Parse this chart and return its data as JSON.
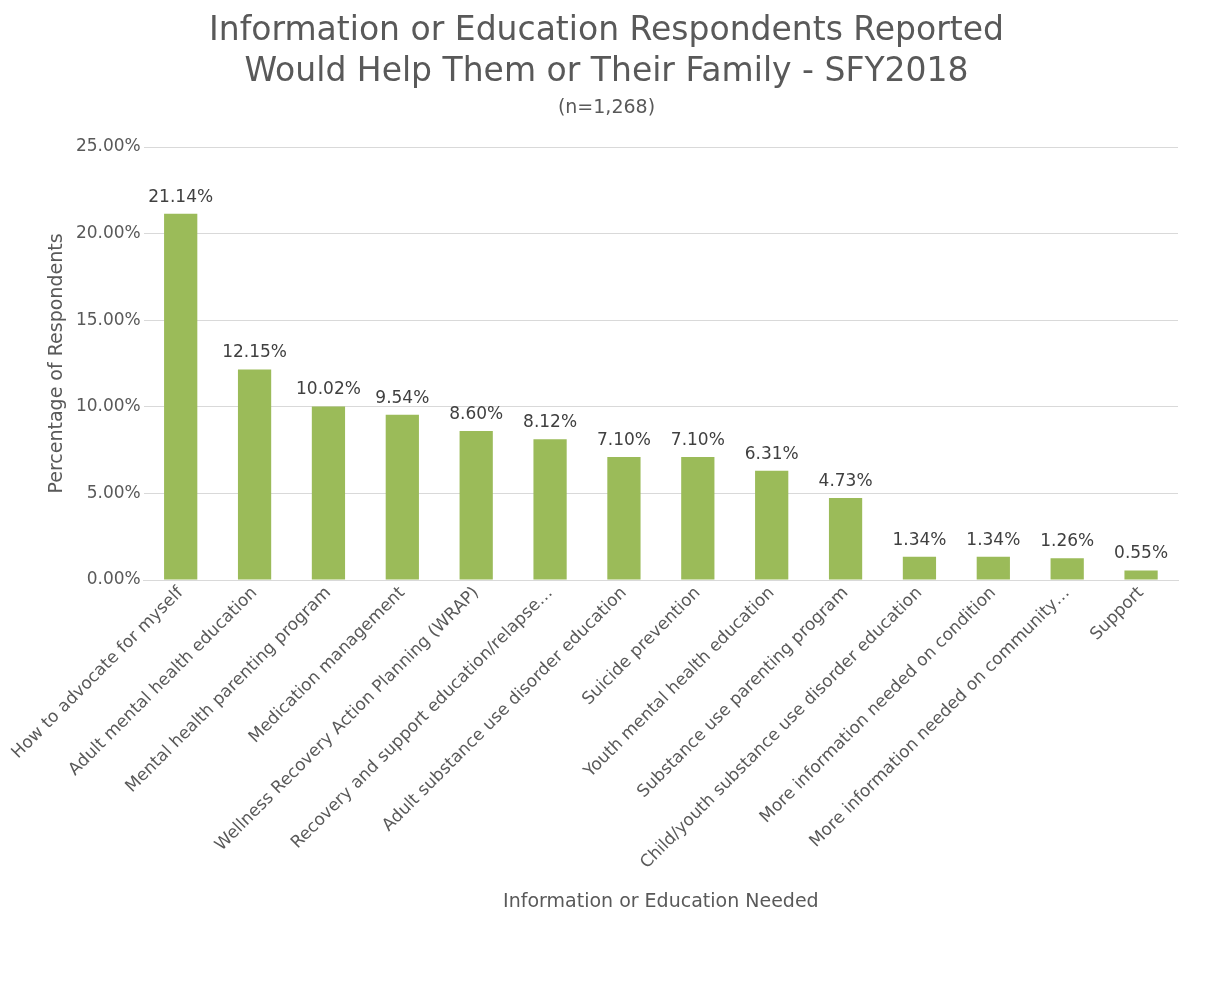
{
  "chart_data": {
    "type": "bar",
    "title": "Information or Education Respondents Reported Would Help Them or Their Family - SFY2018",
    "subtitle": "(n=1,268)",
    "xlabel": "Information or Education Needed",
    "ylabel": "Percentage of Respondents",
    "categories": [
      "How to advocate for myself",
      "Adult mental health education",
      "Mental health parenting program",
      "Medication management",
      "Wellness Recovery Action Planning (WRAP)",
      "Recovery and support education/relapse…",
      "Adult substance use disorder education",
      "Suicide prevention",
      "Youth mental health education",
      "Substance use parenting program",
      "Child/youth substance use disorder education",
      "More information needed on condition",
      "More information needed on community…",
      "Support"
    ],
    "values": [
      21.14,
      12.15,
      10.02,
      9.54,
      8.6,
      8.12,
      7.1,
      7.1,
      6.31,
      4.73,
      1.34,
      1.34,
      1.26,
      0.55
    ],
    "value_labels": [
      "21.14%",
      "12.15%",
      "10.02%",
      "9.54%",
      "8.60%",
      "8.12%",
      "7.10%",
      "7.10%",
      "6.31%",
      "4.73%",
      "1.34%",
      "1.34%",
      "1.26%",
      "0.55%"
    ],
    "color": "#9bbb59",
    "ylim": [
      0,
      25
    ],
    "yticks": [
      {
        "value": 0,
        "label": "0.00%"
      },
      {
        "value": 5,
        "label": "5.00%"
      },
      {
        "value": 10,
        "label": "10.00%"
      },
      {
        "value": 15,
        "label": "15.00%"
      },
      {
        "value": 20,
        "label": "20.00%"
      },
      {
        "value": 25,
        "label": "25.00%"
      }
    ],
    "grid": "y",
    "legend": false
  }
}
